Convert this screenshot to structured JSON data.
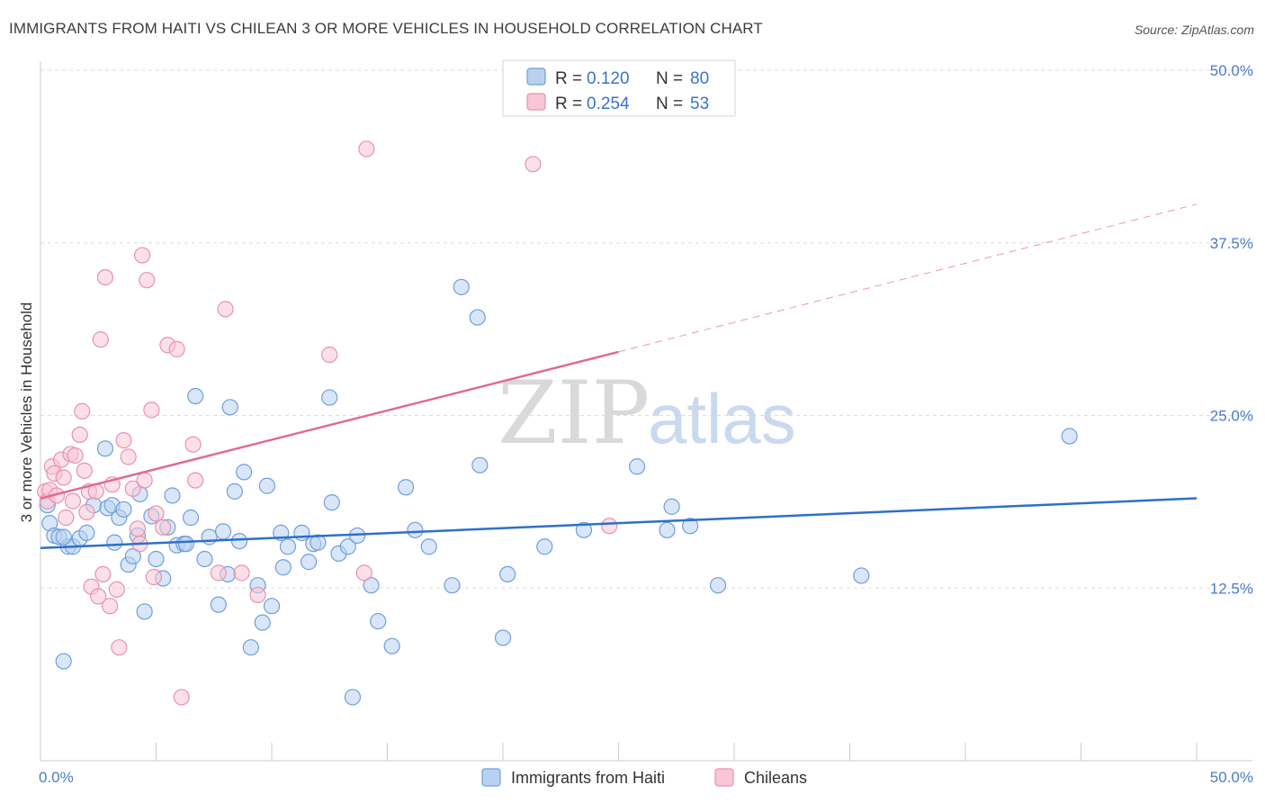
{
  "title": "IMMIGRANTS FROM HAITI VS CHILEAN 3 OR MORE VEHICLES IN HOUSEHOLD CORRELATION CHART",
  "source": "Source: ZipAtlas.com",
  "watermark": {
    "part1": "ZIP",
    "part2": "atlas"
  },
  "colors": {
    "haiti_fill": "#b9d1f1",
    "haiti_stroke": "#6f9fdd",
    "haiti_line": "#2f6fcb",
    "chile_fill": "#f8c6d6",
    "chile_stroke": "#e792b0",
    "chile_line": "#e06b94",
    "grid": "#dddddd",
    "tick_text": "#4a7cc9"
  },
  "legend": {
    "rows": [
      {
        "r_label": "R =",
        "r_value": "0.120",
        "n_label": "N =",
        "n_value": "80"
      },
      {
        "r_label": "R =",
        "r_value": "0.254",
        "n_label": "N =",
        "n_value": "53"
      }
    ]
  },
  "chart_data": {
    "type": "scatter",
    "title": "IMMIGRANTS FROM HAITI VS CHILEAN 3 OR MORE VEHICLES IN HOUSEHOLD CORRELATION CHART",
    "xlabel": "",
    "ylabel": "3 or more Vehicles in Household",
    "xlim": [
      0,
      50
    ],
    "ylim": [
      0,
      50
    ],
    "x_tick_labels": [
      "0.0%",
      "50.0%"
    ],
    "y_ticks": [
      12.5,
      25.0,
      37.5,
      50.0
    ],
    "y_tick_labels": [
      "12.5%",
      "25.0%",
      "37.5%",
      "50.0%"
    ],
    "grid": true,
    "legend_position": "top-center",
    "series": [
      {
        "name": "Immigrants from Haiti",
        "color": "#6f9fdd",
        "trend": {
          "x": [
            0,
            50
          ],
          "y": [
            15.4,
            19.0
          ]
        },
        "points": [
          [
            0.3,
            18.5
          ],
          [
            0.4,
            17.2
          ],
          [
            0.6,
            16.3
          ],
          [
            0.8,
            16.2
          ],
          [
            1.0,
            7.2
          ],
          [
            1.2,
            15.5
          ],
          [
            1.4,
            15.5
          ],
          [
            1.7,
            16.1
          ],
          [
            2.0,
            16.5
          ],
          [
            2.3,
            18.5
          ],
          [
            2.8,
            22.6
          ],
          [
            2.9,
            18.3
          ],
          [
            3.1,
            18.5
          ],
          [
            3.2,
            15.8
          ],
          [
            3.4,
            17.6
          ],
          [
            3.8,
            14.2
          ],
          [
            4.0,
            14.8
          ],
          [
            4.2,
            16.3
          ],
          [
            4.3,
            19.3
          ],
          [
            4.5,
            10.8
          ],
          [
            4.8,
            17.7
          ],
          [
            5.0,
            14.6
          ],
          [
            5.3,
            13.2
          ],
          [
            5.5,
            16.9
          ],
          [
            5.7,
            19.2
          ],
          [
            5.9,
            15.6
          ],
          [
            6.2,
            15.7
          ],
          [
            6.3,
            15.7
          ],
          [
            6.5,
            17.6
          ],
          [
            6.7,
            26.4
          ],
          [
            7.1,
            14.6
          ],
          [
            7.3,
            16.2
          ],
          [
            7.7,
            11.3
          ],
          [
            7.9,
            16.6
          ],
          [
            8.1,
            13.5
          ],
          [
            8.2,
            25.6
          ],
          [
            8.4,
            19.5
          ],
          [
            8.6,
            15.9
          ],
          [
            8.8,
            20.9
          ],
          [
            9.1,
            8.2
          ],
          [
            9.4,
            12.7
          ],
          [
            9.6,
            10.0
          ],
          [
            9.8,
            19.9
          ],
          [
            10.0,
            11.2
          ],
          [
            10.4,
            16.5
          ],
          [
            10.5,
            14.0
          ],
          [
            10.7,
            15.5
          ],
          [
            11.3,
            16.5
          ],
          [
            11.6,
            14.4
          ],
          [
            11.8,
            15.7
          ],
          [
            12.0,
            15.8
          ],
          [
            12.5,
            26.3
          ],
          [
            12.6,
            18.7
          ],
          [
            12.9,
            15.0
          ],
          [
            13.3,
            15.5
          ],
          [
            13.5,
            4.6
          ],
          [
            13.7,
            16.3
          ],
          [
            14.3,
            12.7
          ],
          [
            14.6,
            10.1
          ],
          [
            15.2,
            8.3
          ],
          [
            15.8,
            19.8
          ],
          [
            16.2,
            16.7
          ],
          [
            16.8,
            15.5
          ],
          [
            17.8,
            12.7
          ],
          [
            18.2,
            34.3
          ],
          [
            18.9,
            32.1
          ],
          [
            19.0,
            21.4
          ],
          [
            20.0,
            8.9
          ],
          [
            20.2,
            13.5
          ],
          [
            21.8,
            15.5
          ],
          [
            23.5,
            16.7
          ],
          [
            25.8,
            21.3
          ],
          [
            27.1,
            16.7
          ],
          [
            27.3,
            18.4
          ],
          [
            28.1,
            17.0
          ],
          [
            29.3,
            12.7
          ],
          [
            35.5,
            13.4
          ],
          [
            44.5,
            23.5
          ],
          [
            1.0,
            16.2
          ],
          [
            3.6,
            18.2
          ]
        ]
      },
      {
        "name": "Chileans",
        "color": "#e792b0",
        "trend": {
          "x": [
            0,
            25
          ],
          "y": [
            19.0,
            29.6
          ]
        },
        "trend_dashed": {
          "x": [
            25,
            50
          ],
          "y": [
            29.6,
            40.3
          ]
        },
        "points": [
          [
            0.2,
            19.5
          ],
          [
            0.3,
            18.8
          ],
          [
            0.4,
            19.6
          ],
          [
            0.5,
            21.3
          ],
          [
            0.6,
            20.8
          ],
          [
            0.7,
            19.2
          ],
          [
            0.9,
            21.8
          ],
          [
            1.0,
            20.5
          ],
          [
            1.1,
            17.6
          ],
          [
            1.3,
            22.2
          ],
          [
            1.4,
            18.8
          ],
          [
            1.5,
            22.1
          ],
          [
            1.7,
            23.6
          ],
          [
            1.8,
            25.3
          ],
          [
            1.9,
            21.0
          ],
          [
            2.0,
            18.0
          ],
          [
            2.1,
            19.5
          ],
          [
            2.2,
            12.6
          ],
          [
            2.4,
            19.5
          ],
          [
            2.5,
            11.9
          ],
          [
            2.6,
            30.5
          ],
          [
            2.7,
            13.5
          ],
          [
            2.8,
            35.0
          ],
          [
            3.0,
            11.2
          ],
          [
            3.1,
            20.0
          ],
          [
            3.3,
            12.4
          ],
          [
            3.4,
            8.2
          ],
          [
            3.6,
            23.2
          ],
          [
            3.8,
            22.0
          ],
          [
            4.0,
            19.7
          ],
          [
            4.2,
            16.8
          ],
          [
            4.3,
            15.7
          ],
          [
            4.4,
            36.6
          ],
          [
            4.5,
            20.3
          ],
          [
            4.6,
            34.8
          ],
          [
            4.8,
            25.4
          ],
          [
            4.9,
            13.3
          ],
          [
            5.0,
            17.9
          ],
          [
            5.3,
            16.9
          ],
          [
            5.5,
            30.1
          ],
          [
            5.9,
            29.8
          ],
          [
            6.1,
            4.6
          ],
          [
            6.6,
            22.9
          ],
          [
            6.7,
            20.3
          ],
          [
            7.7,
            13.6
          ],
          [
            8.0,
            32.7
          ],
          [
            8.7,
            13.6
          ],
          [
            9.4,
            12.0
          ],
          [
            12.5,
            29.4
          ],
          [
            14.0,
            13.6
          ],
          [
            14.1,
            44.3
          ],
          [
            21.3,
            43.2
          ],
          [
            24.6,
            17.0
          ]
        ]
      }
    ]
  },
  "bottom_legend": [
    "Immigrants from Haiti",
    "Chileans"
  ]
}
